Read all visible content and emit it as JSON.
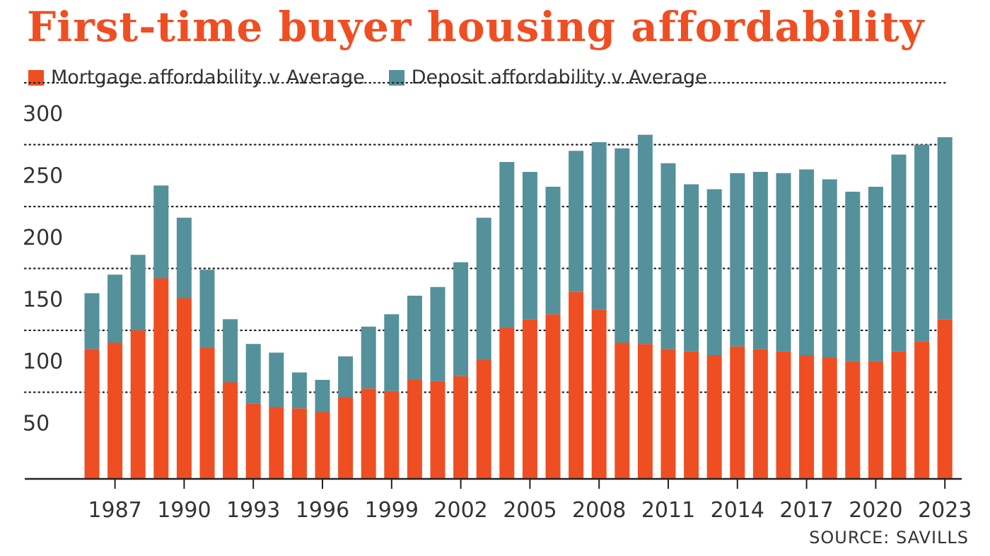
{
  "title": "First-time buyer housing affordability",
  "source": "SOURCE: SAVILLS",
  "colors": {
    "mortgage": "#ef4e23",
    "deposit": "#54919b",
    "title": "#ef4e23"
  },
  "chart_data": {
    "type": "bar",
    "stacked": true,
    "title": "First-time buyer housing affordability",
    "xlabel": "",
    "ylabel": "",
    "ylim": [
      5,
      305
    ],
    "yticks": [
      50,
      100,
      150,
      200,
      250,
      300
    ],
    "grid": true,
    "legend_position": "top-left",
    "x_tick_labels": [
      "1987",
      "1990",
      "1993",
      "1996",
      "1999",
      "2002",
      "2005",
      "2008",
      "2011",
      "2014",
      "2017",
      "2020",
      "2023"
    ],
    "categories": [
      "1986",
      "1987",
      "1988",
      "1989",
      "1990",
      "1991",
      "1992",
      "1993",
      "1994",
      "1995",
      "1996",
      "1997",
      "1998",
      "1999",
      "2000",
      "2001",
      "2002",
      "2003",
      "2004",
      "2005",
      "2006",
      "2007",
      "2008",
      "2009",
      "2010",
      "2011",
      "2012",
      "2013",
      "2014",
      "2015",
      "2016",
      "2017",
      "2018",
      "2019",
      "2020",
      "2021",
      "2022",
      "2023"
    ],
    "series": [
      {
        "name": "Mortgage affordability v Average",
        "color": "#ef4e23",
        "values": [
          110,
          115,
          125,
          167,
          151,
          111,
          83,
          66,
          63,
          62,
          59,
          71,
          78,
          76,
          85,
          84,
          88,
          101,
          127,
          134,
          138,
          156,
          142,
          115,
          114,
          110,
          108,
          105,
          112,
          110,
          108,
          105,
          103,
          100,
          100,
          108,
          116,
          134
        ]
      },
      {
        "name": "Deposit affordability v Average",
        "color": "#54919b",
        "values": [
          45,
          55,
          61,
          75,
          65,
          63,
          51,
          48,
          44,
          29,
          26,
          33,
          50,
          62,
          68,
          76,
          92,
          115,
          134,
          119,
          103,
          114,
          135,
          157,
          169,
          150,
          135,
          134,
          140,
          143,
          144,
          150,
          144,
          137,
          141,
          159,
          159,
          147
        ]
      }
    ]
  }
}
